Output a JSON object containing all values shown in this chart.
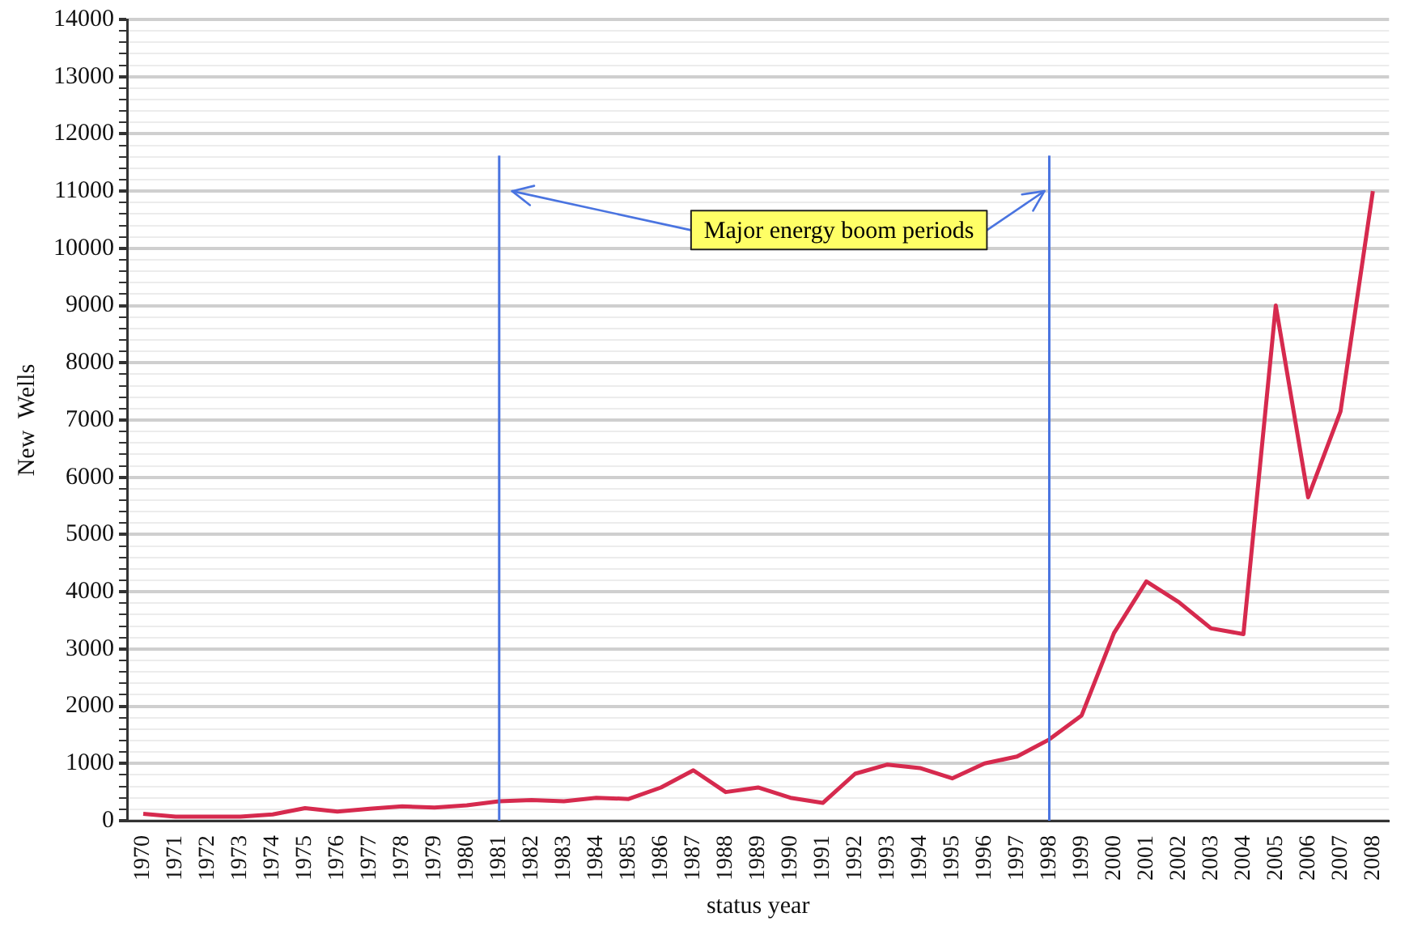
{
  "chart_data": {
    "type": "line",
    "xlabel": "status year",
    "ylabel": "New  Wells",
    "categories": [
      "1970",
      "1971",
      "1972",
      "1973",
      "1974",
      "1975",
      "1976",
      "1977",
      "1978",
      "1979",
      "1980",
      "1981",
      "1982",
      "1983",
      "1984",
      "1985",
      "1986",
      "1987",
      "1988",
      "1989",
      "1990",
      "1991",
      "1992",
      "1993",
      "1994",
      "1995",
      "1996",
      "1997",
      "1998",
      "1999",
      "2000",
      "2001",
      "2002",
      "2003",
      "2004",
      "2005",
      "2006",
      "2007",
      "2008"
    ],
    "series": [
      {
        "color": "#d62a4e",
        "values": [
          120,
          70,
          70,
          70,
          110,
          220,
          160,
          210,
          250,
          230,
          270,
          340,
          360,
          340,
          400,
          380,
          580,
          880,
          500,
          580,
          400,
          310,
          820,
          980,
          920,
          740,
          1000,
          1120,
          1420,
          1840,
          3280,
          4180,
          3820,
          3360,
          3260,
          9000,
          5650,
          7150,
          11000
        ]
      }
    ],
    "ylim": [
      0,
      14000
    ],
    "yticks": [
      0,
      {
        "value": 200,
        "label": null
      },
      {
        "value": 400,
        "label": null
      },
      {
        "value": 600,
        "label": null
      },
      {
        "value": 800,
        "label": null
      },
      1000,
      {
        "value": 1200,
        "label": null
      },
      {
        "value": 1400,
        "label": null
      },
      {
        "value": 1600,
        "label": null
      },
      {
        "value": 1800,
        "label": null
      },
      2000,
      {
        "value": 2200,
        "label": null
      },
      {
        "value": 2400,
        "label": null
      },
      {
        "value": 2600,
        "label": null
      },
      {
        "value": 2800,
        "label": null
      },
      3000,
      {
        "value": 3200,
        "label": null
      },
      {
        "value": 3400,
        "label": null
      },
      {
        "value": 3600,
        "label": null
      },
      {
        "value": 3800,
        "label": null
      },
      4000,
      {
        "value": 4200,
        "label": null
      },
      {
        "value": 4400,
        "label": null
      },
      {
        "value": 4600,
        "label": null
      },
      {
        "value": 4800,
        "label": null
      },
      5000,
      {
        "value": 5200,
        "label": null
      },
      {
        "value": 5400,
        "label": null
      },
      {
        "value": 5600,
        "label": null
      },
      {
        "value": 5800,
        "label": null
      },
      6000,
      {
        "value": 6200,
        "label": null
      },
      {
        "value": 6400,
        "label": null
      },
      {
        "value": 6600,
        "label": null
      },
      {
        "value": 6800,
        "label": null
      },
      7000,
      {
        "value": 7200,
        "label": null
      },
      {
        "value": 7400,
        "label": null
      },
      {
        "value": 7600,
        "label": null
      },
      {
        "value": 7800,
        "label": null
      },
      8000,
      {
        "value": 8200,
        "label": null
      },
      {
        "value": 8400,
        "label": null
      },
      {
        "value": 8600,
        "label": null
      },
      {
        "value": 8800,
        "label": null
      },
      9000,
      {
        "value": 9200,
        "label": null
      },
      {
        "value": 9400,
        "label": null
      },
      {
        "value": 9600,
        "label": null
      },
      {
        "value": 9800,
        "label": null
      },
      10000,
      {
        "value": 10200,
        "label": null
      },
      {
        "value": 10400,
        "label": null
      },
      {
        "value": 10600,
        "label": null
      },
      {
        "value": 10800,
        "label": null
      },
      11000,
      {
        "value": 11200,
        "label": null
      },
      {
        "value": 11400,
        "label": null
      },
      {
        "value": 11600,
        "label": null
      },
      {
        "value": 11800,
        "label": null
      },
      12000,
      {
        "value": 12200,
        "label": null
      },
      {
        "value": 12400,
        "label": null
      },
      {
        "value": 12600,
        "label": null
      },
      {
        "value": 12800,
        "label": null
      },
      13000,
      {
        "value": 13200,
        "label": null
      },
      {
        "value": 13400,
        "label": null
      },
      {
        "value": 13600,
        "label": null
      },
      {
        "value": 13800,
        "label": null
      },
      14000
    ],
    "ref_lines": [
      {
        "axis": "x",
        "value": "1981",
        "color": "#4a74e0"
      },
      {
        "axis": "x",
        "value": "1998",
        "color": "#4a74e0"
      }
    ],
    "annotations": [
      {
        "text": "Major energy boom periods",
        "x": "1998",
        "y": 11000
      }
    ],
    "grid": "y",
    "legend": false,
    "marker": "none",
    "line_style": "solid"
  }
}
